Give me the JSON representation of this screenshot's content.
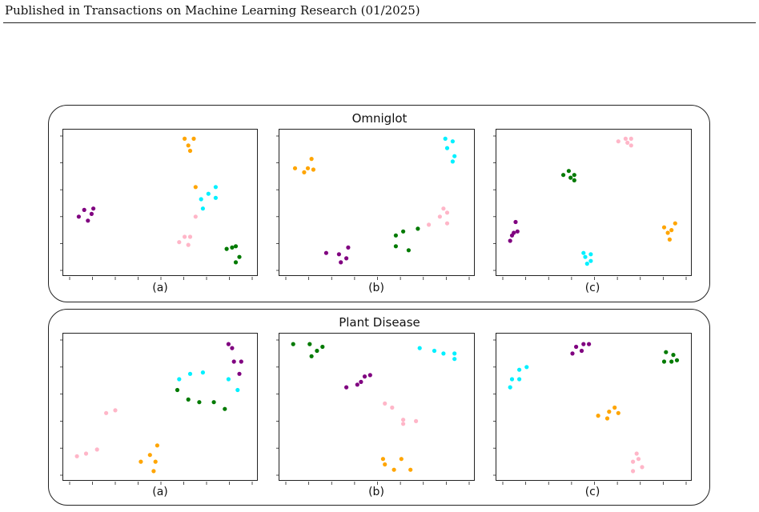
{
  "header": {
    "text": "Published in Transactions on Machine Learning Research (01/2025)"
  },
  "figure": {
    "groups": [
      {
        "title": "Omniglot",
        "panels": [
          {
            "label": "(a)"
          },
          {
            "label": "(b)"
          },
          {
            "label": "(c)"
          }
        ]
      },
      {
        "title": "Plant Disease",
        "panels": [
          {
            "label": "(a)"
          },
          {
            "label": "(b)"
          },
          {
            "label": "(c)"
          }
        ]
      }
    ]
  },
  "colors": {
    "purple": "#800080",
    "orange": "#ffa500",
    "cyan": "#00f0ff",
    "pink": "#ffb6c8",
    "green": "#007a00"
  },
  "chart_data": [
    {
      "type": "scatter",
      "group": "Omniglot",
      "panel": "(a)",
      "xlim": [
        0,
        1
      ],
      "ylim": [
        0,
        1
      ],
      "grid": false,
      "series": [
        {
          "color": "purple",
          "points": [
            [
              0.05,
              0.4
            ],
            [
              0.08,
              0.45
            ],
            [
              0.1,
              0.37
            ],
            [
              0.12,
              0.42
            ],
            [
              0.13,
              0.46
            ]
          ]
        },
        {
          "color": "orange",
          "points": [
            [
              0.63,
              0.98
            ],
            [
              0.65,
              0.93
            ],
            [
              0.68,
              0.98
            ],
            [
              0.66,
              0.89
            ],
            [
              0.69,
              0.62
            ]
          ]
        },
        {
          "color": "cyan",
          "points": [
            [
              0.72,
              0.53
            ],
            [
              0.73,
              0.46
            ],
            [
              0.76,
              0.57
            ],
            [
              0.8,
              0.62
            ],
            [
              0.8,
              0.54
            ]
          ]
        },
        {
          "color": "pink",
          "points": [
            [
              0.6,
              0.21
            ],
            [
              0.63,
              0.25
            ],
            [
              0.66,
              0.25
            ],
            [
              0.65,
              0.19
            ],
            [
              0.69,
              0.4
            ]
          ]
        },
        {
          "color": "green",
          "points": [
            [
              0.86,
              0.16
            ],
            [
              0.89,
              0.17
            ],
            [
              0.91,
              0.18
            ],
            [
              0.91,
              0.06
            ],
            [
              0.93,
              0.1
            ]
          ]
        }
      ]
    },
    {
      "type": "scatter",
      "group": "Omniglot",
      "panel": "(b)",
      "xlim": [
        0,
        1
      ],
      "ylim": [
        0,
        1
      ],
      "grid": false,
      "series": [
        {
          "color": "orange",
          "points": [
            [
              0.05,
              0.76
            ],
            [
              0.1,
              0.73
            ],
            [
              0.12,
              0.76
            ],
            [
              0.14,
              0.83
            ],
            [
              0.15,
              0.75
            ]
          ]
        },
        {
          "color": "cyan",
          "points": [
            [
              0.87,
              0.98
            ],
            [
              0.88,
              0.91
            ],
            [
              0.91,
              0.96
            ],
            [
              0.92,
              0.85
            ],
            [
              0.91,
              0.81
            ]
          ]
        },
        {
          "color": "purple",
          "points": [
            [
              0.22,
              0.13
            ],
            [
              0.29,
              0.12
            ],
            [
              0.3,
              0.06
            ],
            [
              0.33,
              0.09
            ],
            [
              0.34,
              0.17
            ]
          ]
        },
        {
          "color": "green",
          "points": [
            [
              0.6,
              0.26
            ],
            [
              0.6,
              0.18
            ],
            [
              0.64,
              0.29
            ],
            [
              0.67,
              0.15
            ],
            [
              0.72,
              0.31
            ]
          ]
        },
        {
          "color": "pink",
          "points": [
            [
              0.78,
              0.34
            ],
            [
              0.84,
              0.4
            ],
            [
              0.86,
              0.46
            ],
            [
              0.88,
              0.43
            ],
            [
              0.88,
              0.35
            ]
          ]
        }
      ]
    },
    {
      "type": "scatter",
      "group": "Omniglot",
      "panel": "(c)",
      "xlim": [
        0,
        1
      ],
      "ylim": [
        0,
        1
      ],
      "grid": false,
      "series": [
        {
          "color": "pink",
          "points": [
            [
              0.63,
              0.96
            ],
            [
              0.67,
              0.98
            ],
            [
              0.68,
              0.95
            ],
            [
              0.7,
              0.98
            ],
            [
              0.7,
              0.93
            ]
          ]
        },
        {
          "color": "green",
          "points": [
            [
              0.33,
              0.71
            ],
            [
              0.36,
              0.74
            ],
            [
              0.37,
              0.69
            ],
            [
              0.39,
              0.71
            ],
            [
              0.39,
              0.67
            ]
          ]
        },
        {
          "color": "purple",
          "points": [
            [
              0.04,
              0.22
            ],
            [
              0.05,
              0.26
            ],
            [
              0.06,
              0.28
            ],
            [
              0.07,
              0.36
            ],
            [
              0.08,
              0.29
            ]
          ]
        },
        {
          "color": "orange",
          "points": [
            [
              0.88,
              0.32
            ],
            [
              0.9,
              0.28
            ],
            [
              0.91,
              0.23
            ],
            [
              0.92,
              0.3
            ],
            [
              0.94,
              0.35
            ]
          ]
        },
        {
          "color": "cyan",
          "points": [
            [
              0.44,
              0.13
            ],
            [
              0.45,
              0.1
            ],
            [
              0.46,
              0.05
            ],
            [
              0.48,
              0.12
            ],
            [
              0.48,
              0.07
            ]
          ]
        }
      ]
    },
    {
      "type": "scatter",
      "group": "Plant Disease",
      "panel": "(a)",
      "xlim": [
        0,
        1
      ],
      "ylim": [
        0,
        1
      ],
      "grid": false,
      "series": [
        {
          "color": "purple",
          "points": [
            [
              0.87,
              0.97
            ],
            [
              0.89,
              0.94
            ],
            [
              0.9,
              0.84
            ],
            [
              0.93,
              0.75
            ],
            [
              0.94,
              0.84
            ]
          ]
        },
        {
          "color": "cyan",
          "points": [
            [
              0.6,
              0.71
            ],
            [
              0.66,
              0.75
            ],
            [
              0.73,
              0.76
            ],
            [
              0.87,
              0.71
            ],
            [
              0.92,
              0.63
            ]
          ]
        },
        {
          "color": "green",
          "points": [
            [
              0.59,
              0.63
            ],
            [
              0.65,
              0.56
            ],
            [
              0.71,
              0.54
            ],
            [
              0.79,
              0.54
            ],
            [
              0.85,
              0.49
            ]
          ]
        },
        {
          "color": "pink",
          "points": [
            [
              0.04,
              0.14
            ],
            [
              0.09,
              0.16
            ],
            [
              0.15,
              0.19
            ],
            [
              0.2,
              0.46
            ],
            [
              0.25,
              0.48
            ]
          ]
        },
        {
          "color": "orange",
          "points": [
            [
              0.39,
              0.1
            ],
            [
              0.44,
              0.15
            ],
            [
              0.46,
              0.03
            ],
            [
              0.47,
              0.1
            ],
            [
              0.48,
              0.22
            ]
          ]
        }
      ]
    },
    {
      "type": "scatter",
      "group": "Plant Disease",
      "panel": "(b)",
      "xlim": [
        0,
        1
      ],
      "ylim": [
        0,
        1
      ],
      "grid": false,
      "series": [
        {
          "color": "green",
          "points": [
            [
              0.04,
              0.97
            ],
            [
              0.13,
              0.97
            ],
            [
              0.14,
              0.88
            ],
            [
              0.17,
              0.92
            ],
            [
              0.2,
              0.95
            ]
          ]
        },
        {
          "color": "cyan",
          "points": [
            [
              0.73,
              0.94
            ],
            [
              0.81,
              0.92
            ],
            [
              0.86,
              0.9
            ],
            [
              0.92,
              0.9
            ],
            [
              0.92,
              0.86
            ]
          ]
        },
        {
          "color": "purple",
          "points": [
            [
              0.33,
              0.65
            ],
            [
              0.39,
              0.67
            ],
            [
              0.41,
              0.69
            ],
            [
              0.43,
              0.73
            ],
            [
              0.46,
              0.74
            ]
          ]
        },
        {
          "color": "pink",
          "points": [
            [
              0.54,
              0.53
            ],
            [
              0.58,
              0.5
            ],
            [
              0.64,
              0.38
            ],
            [
              0.64,
              0.41
            ],
            [
              0.71,
              0.4
            ]
          ]
        },
        {
          "color": "orange",
          "points": [
            [
              0.53,
              0.12
            ],
            [
              0.54,
              0.08
            ],
            [
              0.59,
              0.04
            ],
            [
              0.63,
              0.12
            ],
            [
              0.68,
              0.04
            ]
          ]
        }
      ]
    },
    {
      "type": "scatter",
      "group": "Plant Disease",
      "panel": "(c)",
      "xlim": [
        0,
        1
      ],
      "ylim": [
        0,
        1
      ],
      "grid": false,
      "series": [
        {
          "color": "purple",
          "points": [
            [
              0.38,
              0.9
            ],
            [
              0.4,
              0.95
            ],
            [
              0.43,
              0.92
            ],
            [
              0.44,
              0.97
            ],
            [
              0.47,
              0.97
            ]
          ]
        },
        {
          "color": "green",
          "points": [
            [
              0.88,
              0.84
            ],
            [
              0.89,
              0.91
            ],
            [
              0.92,
              0.84
            ],
            [
              0.93,
              0.89
            ],
            [
              0.95,
              0.85
            ]
          ]
        },
        {
          "color": "cyan",
          "points": [
            [
              0.04,
              0.65
            ],
            [
              0.05,
              0.71
            ],
            [
              0.09,
              0.71
            ],
            [
              0.09,
              0.78
            ],
            [
              0.13,
              0.8
            ]
          ]
        },
        {
          "color": "orange",
          "points": [
            [
              0.52,
              0.44
            ],
            [
              0.57,
              0.42
            ],
            [
              0.58,
              0.47
            ],
            [
              0.61,
              0.5
            ],
            [
              0.63,
              0.46
            ]
          ]
        },
        {
          "color": "pink",
          "points": [
            [
              0.71,
              0.03
            ],
            [
              0.71,
              0.1
            ],
            [
              0.73,
              0.16
            ],
            [
              0.74,
              0.12
            ],
            [
              0.76,
              0.06
            ]
          ]
        }
      ]
    }
  ]
}
